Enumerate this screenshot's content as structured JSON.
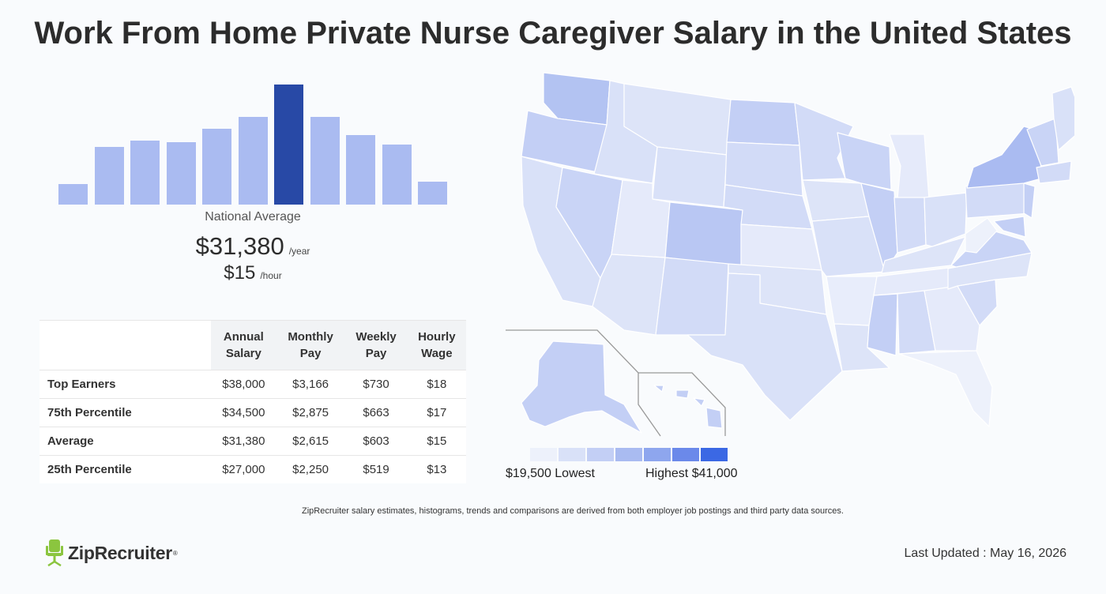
{
  "title": "Work From Home Private Nurse Caregiver Salary in the United States",
  "histogram": {
    "bars": [
      0.17,
      0.48,
      0.53,
      0.52,
      0.63,
      0.73,
      1.0,
      0.73,
      0.58,
      0.5,
      0.19
    ],
    "highlight_index": 6,
    "bar_color": "#aabbf1",
    "highlight_color": "#2849a6"
  },
  "national_average": {
    "label": "National Average",
    "annual": "$31,380",
    "annual_unit": "/year",
    "hourly": "$15",
    "hourly_unit": "/hour"
  },
  "table": {
    "headers": [
      {
        "line1": "Annual",
        "line2": "Salary"
      },
      {
        "line1": "Monthly",
        "line2": "Pay"
      },
      {
        "line1": "Weekly",
        "line2": "Pay"
      },
      {
        "line1": "Hourly",
        "line2": "Wage"
      }
    ],
    "rows": [
      {
        "label": "Top Earners",
        "values": [
          "$38,000",
          "$3,166",
          "$730",
          "$18"
        ]
      },
      {
        "label": "75th Percentile",
        "values": [
          "$34,500",
          "$2,875",
          "$663",
          "$17"
        ]
      },
      {
        "label": "Average",
        "values": [
          "$31,380",
          "$2,615",
          "$603",
          "$15"
        ]
      },
      {
        "label": "25th Percentile",
        "values": [
          "$27,000",
          "$2,250",
          "$519",
          "$13"
        ]
      }
    ]
  },
  "legend": {
    "swatches": [
      "#edf1fb",
      "#d9e1f8",
      "#c3cff5",
      "#a9bbf1",
      "#8ea6ee",
      "#6b89ea",
      "#3b68e4"
    ],
    "low_label": "$19,500 Lowest",
    "high_label": "Highest $41,000"
  },
  "disclaimer": "ZipRecruiter salary estimates, histograms, trends and comparisons are derived from both employer job postings and third party data sources.",
  "logo": {
    "text": "ZipRecruiter",
    "mark": "®",
    "color": "#8bc53f"
  },
  "updated": "Last Updated : May 16, 2026"
}
